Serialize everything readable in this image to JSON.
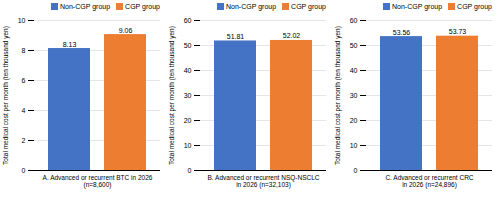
{
  "chart_data": [
    {
      "type": "bar",
      "xlabel": "A. Advanced or recurrent BTC in 2026\n(n=8,600)",
      "ylabel": "Total medical cost per month (ten thousand yen)",
      "series": [
        {
          "name": "Non-CGP group",
          "color": "#4472C4",
          "values": [
            8.13
          ]
        },
        {
          "name": "CGP group",
          "color": "#ED7D31",
          "values": [
            9.06
          ]
        }
      ],
      "ylim": [
        0,
        10
      ],
      "yticks": [
        0,
        2,
        4,
        6,
        8,
        10
      ],
      "grid": true,
      "legend": "upper right",
      "data_labels": true
    },
    {
      "type": "bar",
      "xlabel": "B. Advanced or recurrent NSQ-NSCLC\nin 2026 (n=32,103)",
      "ylabel": "Total medical cost per month (ten thousand yen)",
      "series": [
        {
          "name": "Non-CGP group",
          "color": "#4472C4",
          "values": [
            51.81
          ]
        },
        {
          "name": "CGP group",
          "color": "#ED7D31",
          "values": [
            52.02
          ]
        }
      ],
      "ylim": [
        0,
        60
      ],
      "yticks": [
        0,
        10,
        20,
        30,
        40,
        50,
        60
      ],
      "grid": true,
      "legend": "upper right",
      "data_labels": true
    },
    {
      "type": "bar",
      "xlabel": "C. Advanced or recurrent CRC\nin 2026 (n=24,896)",
      "ylabel": "Total medical cost per month (ten thousand yen)",
      "series": [
        {
          "name": "Non-CGP group",
          "color": "#4472C4",
          "values": [
            53.56
          ]
        },
        {
          "name": "CGP group",
          "color": "#ED7D31",
          "values": [
            53.73
          ]
        }
      ],
      "ylim": [
        0,
        60
      ],
      "yticks": [
        0,
        10,
        20,
        30,
        40,
        50,
        60
      ],
      "grid": true,
      "legend": "upper right",
      "data_labels": true
    }
  ]
}
